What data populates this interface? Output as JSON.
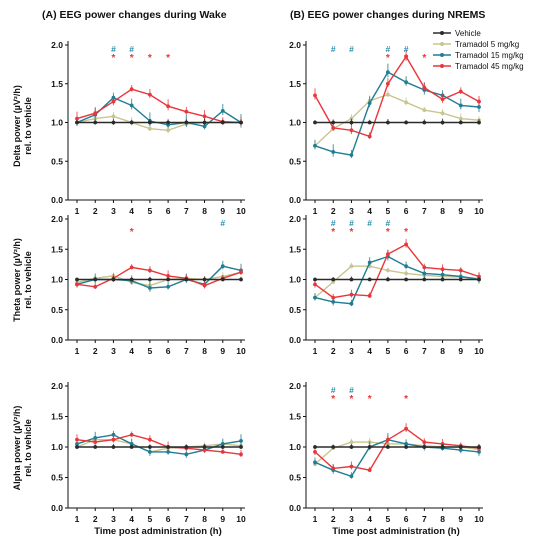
{
  "colors": {
    "Vehicle": "#2b2b2b",
    "Tramadol 5 mg/kg": "#c8c58f",
    "Tramadol 15 mg/kg": "#1f7e93",
    "Tramadol 45 mg/kg": "#e8363b",
    "hash": "#2a8fb0",
    "star": "#e8363b"
  },
  "column_titles": [
    "(A) EEG power changes during Wake",
    "(B) EEG power changes during NREMS"
  ],
  "row_ylabels": [
    [
      "Delta power (µV²/h)",
      "rel. to vehicle"
    ],
    [
      "Theta power (µV²/h)",
      "rel. to vehicle"
    ],
    [
      "Alpha power (µV²/h)",
      "rel. to vehicle"
    ]
  ],
  "xlabel": "Time post administration (h)",
  "legend": [
    "Vehicle",
    "Tramadol 5 mg/kg",
    "Tramadol 15 mg/kg",
    "Tramadol 45 mg/kg"
  ],
  "chart_data": [
    {
      "type": "line",
      "panel": "Wake - Delta",
      "x": [
        1,
        2,
        3,
        4,
        5,
        6,
        7,
        8,
        9,
        10
      ],
      "ylim": [
        0,
        2.0
      ],
      "yticks": [
        0,
        0.5,
        1.0,
        1.5,
        2.0
      ],
      "series": [
        {
          "name": "Vehicle",
          "values": [
            1,
            1,
            1,
            1,
            1,
            1,
            1,
            1,
            1,
            1
          ]
        },
        {
          "name": "Tramadol 5 mg/kg",
          "values": [
            1.0,
            1.05,
            1.08,
            1.0,
            0.92,
            0.9,
            0.98,
            1.0,
            1.0,
            1.0
          ]
        },
        {
          "name": "Tramadol 15 mg/kg",
          "values": [
            1.0,
            1.1,
            1.32,
            1.22,
            1.02,
            0.97,
            1.0,
            0.95,
            1.15,
            1.0
          ]
        },
        {
          "name": "Tramadol 45 mg/kg",
          "values": [
            1.05,
            1.12,
            1.27,
            1.43,
            1.36,
            1.21,
            1.14,
            1.08,
            1.01,
            1.0
          ]
        }
      ],
      "significance": {
        "hash": [
          3,
          4
        ],
        "star": [
          3,
          4,
          5,
          6
        ]
      }
    },
    {
      "type": "line",
      "panel": "NREMS - Delta",
      "x": [
        1,
        2,
        3,
        4,
        5,
        6,
        7,
        8,
        9,
        10
      ],
      "ylim": [
        0,
        2.0
      ],
      "yticks": [
        0,
        0.5,
        1.0,
        1.5,
        2.0
      ],
      "series": [
        {
          "name": "Vehicle",
          "values": [
            1,
            1,
            1,
            1,
            1,
            1,
            1,
            1,
            1,
            1
          ]
        },
        {
          "name": "Tramadol 5 mg/kg",
          "values": [
            0.7,
            0.92,
            1.05,
            1.28,
            1.36,
            1.26,
            1.16,
            1.12,
            1.05,
            1.03
          ]
        },
        {
          "name": "Tramadol 15 mg/kg",
          "values": [
            0.7,
            0.62,
            0.58,
            1.25,
            1.65,
            1.52,
            1.42,
            1.35,
            1.22,
            1.2
          ]
        },
        {
          "name": "Tramadol 45 mg/kg",
          "values": [
            1.35,
            0.93,
            0.9,
            0.82,
            1.5,
            1.85,
            1.45,
            1.3,
            1.4,
            1.27
          ]
        }
      ],
      "significance": {
        "hash": [
          2,
          3,
          5,
          6
        ],
        "star": [
          5,
          6,
          7
        ]
      }
    },
    {
      "type": "line",
      "panel": "Wake - Theta",
      "x": [
        1,
        2,
        3,
        4,
        5,
        6,
        7,
        8,
        9,
        10
      ],
      "ylim": [
        0,
        2.0
      ],
      "yticks": [
        0,
        0.5,
        1.0,
        1.5,
        2.0
      ],
      "series": [
        {
          "name": "Vehicle",
          "values": [
            1,
            1,
            1,
            1,
            1,
            1,
            1,
            1,
            1,
            1
          ]
        },
        {
          "name": "Tramadol 5 mg/kg",
          "values": [
            0.95,
            1.02,
            1.06,
            0.95,
            0.9,
            1.0,
            1.02,
            1.0,
            1.05,
            1.12
          ]
        },
        {
          "name": "Tramadol 15 mg/kg",
          "values": [
            0.92,
            1.0,
            1.0,
            0.98,
            0.86,
            0.88,
            1.0,
            0.92,
            1.22,
            1.15
          ]
        },
        {
          "name": "Tramadol 45 mg/kg",
          "values": [
            0.92,
            0.88,
            1.02,
            1.2,
            1.15,
            1.06,
            1.02,
            0.9,
            1.02,
            1.12
          ]
        }
      ],
      "significance": {
        "hash": [
          9
        ],
        "star": [
          4
        ]
      }
    },
    {
      "type": "line",
      "panel": "NREMS - Theta",
      "x": [
        1,
        2,
        3,
        4,
        5,
        6,
        7,
        8,
        9,
        10
      ],
      "ylim": [
        0,
        2.0
      ],
      "yticks": [
        0,
        0.5,
        1.0,
        1.5,
        2.0
      ],
      "series": [
        {
          "name": "Vehicle",
          "values": [
            1,
            1,
            1,
            1,
            1,
            1,
            1,
            1,
            1,
            1
          ]
        },
        {
          "name": "Tramadol 5 mg/kg",
          "values": [
            0.7,
            0.96,
            1.22,
            1.22,
            1.15,
            1.1,
            1.07,
            1.05,
            1.04,
            1.02
          ]
        },
        {
          "name": "Tramadol 15 mg/kg",
          "values": [
            0.7,
            0.63,
            0.6,
            1.28,
            1.38,
            1.22,
            1.1,
            1.08,
            1.05,
            1.0
          ]
        },
        {
          "name": "Tramadol 45 mg/kg",
          "values": [
            0.92,
            0.7,
            0.75,
            0.73,
            1.42,
            1.58,
            1.2,
            1.17,
            1.15,
            1.05
          ]
        }
      ],
      "significance": {
        "hash": [
          2,
          3,
          4,
          5
        ],
        "star": [
          2,
          3,
          5,
          6
        ]
      }
    },
    {
      "type": "line",
      "panel": "Wake - Alpha",
      "x": [
        1,
        2,
        3,
        4,
        5,
        6,
        7,
        8,
        9,
        10
      ],
      "ylim": [
        0,
        2.0
      ],
      "yticks": [
        0,
        0.5,
        1.0,
        1.5,
        2.0
      ],
      "series": [
        {
          "name": "Vehicle",
          "values": [
            1,
            1,
            1,
            1,
            1,
            1,
            1,
            1,
            1,
            1
          ]
        },
        {
          "name": "Tramadol 5 mg/kg",
          "values": [
            1.0,
            1.12,
            1.12,
            1.05,
            0.92,
            0.98,
            1.0,
            1.02,
            1.05,
            1.02
          ]
        },
        {
          "name": "Tramadol 15 mg/kg",
          "values": [
            1.05,
            1.15,
            1.2,
            1.05,
            0.92,
            0.92,
            0.88,
            0.95,
            1.05,
            1.1
          ]
        },
        {
          "name": "Tramadol 45 mg/kg",
          "values": [
            1.12,
            1.08,
            1.12,
            1.2,
            1.12,
            1.0,
            0.98,
            0.95,
            0.92,
            0.88
          ]
        }
      ],
      "significance": {
        "hash": [],
        "star": []
      }
    },
    {
      "type": "line",
      "panel": "NREMS - Alpha",
      "x": [
        1,
        2,
        3,
        4,
        5,
        6,
        7,
        8,
        9,
        10
      ],
      "ylim": [
        0,
        2.0
      ],
      "yticks": [
        0,
        0.5,
        1.0,
        1.5,
        2.0
      ],
      "series": [
        {
          "name": "Vehicle",
          "values": [
            1,
            1,
            1,
            1,
            1,
            1,
            1,
            1,
            1,
            1
          ]
        },
        {
          "name": "Tramadol 5 mg/kg",
          "values": [
            0.72,
            0.98,
            1.08,
            1.08,
            1.05,
            1.05,
            1.02,
            1.0,
            1.0,
            0.96
          ]
        },
        {
          "name": "Tramadol 15 mg/kg",
          "values": [
            0.75,
            0.62,
            0.52,
            1.0,
            1.12,
            1.05,
            1.0,
            0.98,
            0.95,
            0.92
          ]
        },
        {
          "name": "Tramadol 45 mg/kg",
          "values": [
            0.92,
            0.65,
            0.68,
            0.62,
            1.12,
            1.3,
            1.08,
            1.05,
            1.02,
            0.98
          ]
        }
      ],
      "significance": {
        "hash": [
          2,
          3
        ],
        "star": [
          2,
          3,
          4,
          6
        ]
      }
    }
  ]
}
